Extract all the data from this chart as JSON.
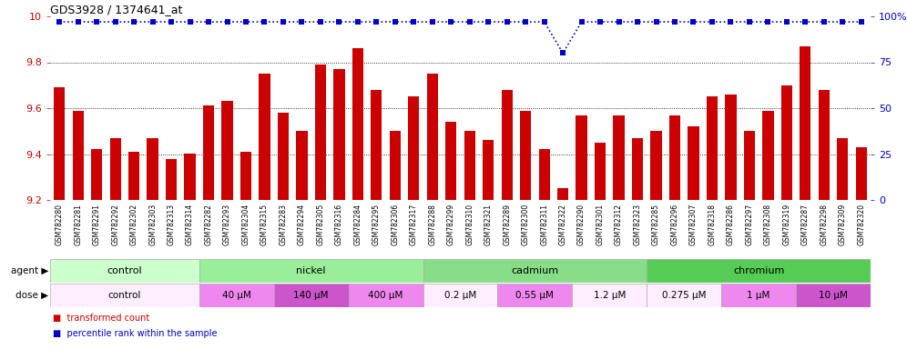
{
  "title": "GDS3928 / 1374641_at",
  "samples": [
    "GSM782280",
    "GSM782281",
    "GSM782291",
    "GSM782292",
    "GSM782302",
    "GSM782303",
    "GSM782313",
    "GSM782314",
    "GSM782282",
    "GSM782293",
    "GSM782304",
    "GSM782315",
    "GSM782283",
    "GSM782294",
    "GSM782305",
    "GSM782316",
    "GSM782284",
    "GSM782295",
    "GSM782306",
    "GSM782317",
    "GSM782288",
    "GSM782299",
    "GSM782310",
    "GSM782321",
    "GSM782289",
    "GSM782300",
    "GSM782311",
    "GSM782322",
    "GSM782290",
    "GSM782301",
    "GSM782312",
    "GSM782323",
    "GSM782285",
    "GSM782296",
    "GSM782307",
    "GSM782318",
    "GSM782286",
    "GSM782297",
    "GSM782308",
    "GSM782319",
    "GSM782287",
    "GSM782298",
    "GSM782309",
    "GSM782320"
  ],
  "bar_values": [
    9.69,
    9.59,
    9.42,
    9.47,
    9.41,
    9.47,
    9.38,
    9.4,
    9.61,
    9.63,
    9.41,
    9.75,
    9.58,
    9.5,
    9.79,
    9.77,
    9.86,
    9.68,
    9.5,
    9.65,
    9.75,
    9.54,
    9.5,
    9.46,
    9.68,
    9.59,
    9.42,
    9.25,
    9.57,
    9.45,
    9.57,
    9.47,
    9.5,
    9.57,
    9.52,
    9.65,
    9.66,
    9.5,
    9.59,
    9.7,
    9.87,
    9.68,
    9.47,
    9.43
  ],
  "percentile_values": [
    97,
    97,
    97,
    97,
    97,
    97,
    97,
    97,
    97,
    97,
    97,
    97,
    97,
    97,
    97,
    97,
    97,
    97,
    97,
    97,
    97,
    97,
    97,
    97,
    97,
    97,
    97,
    80,
    97,
    97,
    97,
    97,
    97,
    97,
    97,
    97,
    97,
    97,
    97,
    97,
    97,
    97,
    97,
    97
  ],
  "ymin": 9.2,
  "ymax": 10.0,
  "yticks": [
    9.2,
    9.4,
    9.6,
    9.8,
    10.0
  ],
  "ytick_labels": [
    "9.2",
    "9.4",
    "9.6",
    "9.8",
    "10"
  ],
  "y2ticks": [
    0,
    25,
    50,
    75,
    100
  ],
  "y2tick_labels": [
    "0",
    "25",
    "50",
    "75",
    "100%"
  ],
  "bar_color": "#cc0000",
  "dot_color": "#0000cc",
  "agent_groups": [
    {
      "label": "control",
      "start": 0,
      "end": 8,
      "color": "#ccffcc"
    },
    {
      "label": "nickel",
      "start": 8,
      "end": 20,
      "color": "#99ee99"
    },
    {
      "label": "cadmium",
      "start": 20,
      "end": 32,
      "color": "#88dd88"
    },
    {
      "label": "chromium",
      "start": 32,
      "end": 44,
      "color": "#55cc55"
    }
  ],
  "dose_groups": [
    {
      "label": "control",
      "start": 0,
      "end": 8,
      "color": "#ffeeff"
    },
    {
      "label": "40 μM",
      "start": 8,
      "end": 12,
      "color": "#ee88ee"
    },
    {
      "label": "140 μM",
      "start": 12,
      "end": 16,
      "color": "#cc55cc"
    },
    {
      "label": "400 μM",
      "start": 16,
      "end": 20,
      "color": "#ee88ee"
    },
    {
      "label": "0.2 μM",
      "start": 20,
      "end": 24,
      "color": "#ffeeff"
    },
    {
      "label": "0.55 μM",
      "start": 24,
      "end": 28,
      "color": "#ee88ee"
    },
    {
      "label": "1.2 μM",
      "start": 28,
      "end": 32,
      "color": "#ffeeff"
    },
    {
      "label": "0.275 μM",
      "start": 32,
      "end": 36,
      "color": "#ffeeff"
    },
    {
      "label": "1 μM",
      "start": 36,
      "end": 40,
      "color": "#ee88ee"
    },
    {
      "label": "10 μM",
      "start": 40,
      "end": 44,
      "color": "#cc55cc"
    }
  ],
  "legend": [
    {
      "label": "transformed count",
      "color": "#cc0000"
    },
    {
      "label": "percentile rank within the sample",
      "color": "#0000cc"
    }
  ]
}
